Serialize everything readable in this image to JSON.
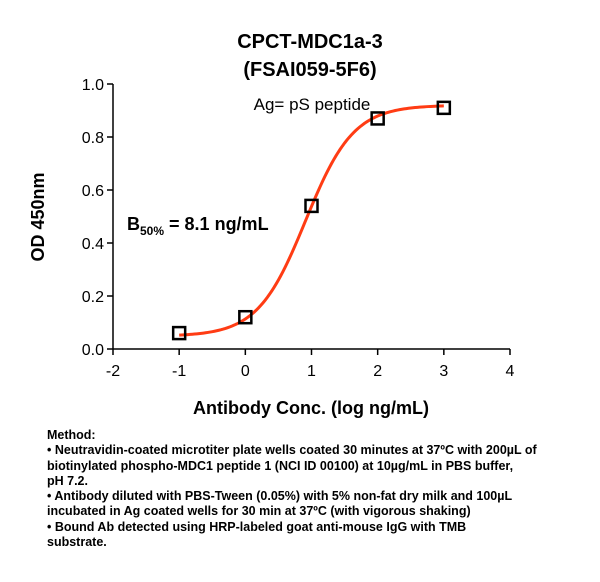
{
  "chart_data": {
    "type": "line",
    "title": [
      "CPCT-MDC1a-3",
      "(FSAI059-5F6)"
    ],
    "xlabel": "Antibody Conc. (log ng/mL)",
    "ylabel": "OD 450nm",
    "xlim": [
      -2,
      4
    ],
    "ylim": [
      0,
      1.0
    ],
    "x_ticks": [
      "-2",
      "-1",
      "0",
      "1",
      "2",
      "3",
      "4"
    ],
    "y_ticks": [
      "0.0",
      "0.2",
      "0.4",
      "0.6",
      "0.8",
      "1.0"
    ],
    "series": [
      {
        "points": [
          {
            "x": -1,
            "y": 0.06
          },
          {
            "x": 0,
            "y": 0.12
          },
          {
            "x": 1,
            "y": 0.54
          },
          {
            "x": 2,
            "y": 0.87
          },
          {
            "x": 3,
            "y": 0.91
          }
        ],
        "fit": {
          "bottom": 0.048,
          "top": 0.92,
          "logEC50": 0.91,
          "hill": 1.2
        },
        "marker_color": "#000000",
        "fit_color": "#ff3c14"
      }
    ],
    "annotations": {
      "antigen": "Ag= pS peptide",
      "b50_main": "B",
      "b50_sub": "50%",
      "b50_value": " = 8.1 ng/mL"
    },
    "grid": false
  },
  "methods": {
    "heading": "Method:",
    "bullets": [
      [
        "• Neutravidin-coated microtiter plate wells coated 30 minutes at 37ºC  with 200µL of",
        "biotinylated phospho-MDC1 peptide 1 (NCI ID 00100) at 10µg/mL in PBS buffer,",
        "pH 7.2."
      ],
      [
        "• Antibody diluted with PBS-Tween (0.05%) with 5% non-fat dry milk and 100µL",
        "incubated in Ag coated wells for 30 min at 37ºC (with vigorous shaking)"
      ],
      [
        "• Bound Ab detected using HRP-labeled goat anti-mouse IgG with TMB",
        "substrate."
      ]
    ]
  }
}
